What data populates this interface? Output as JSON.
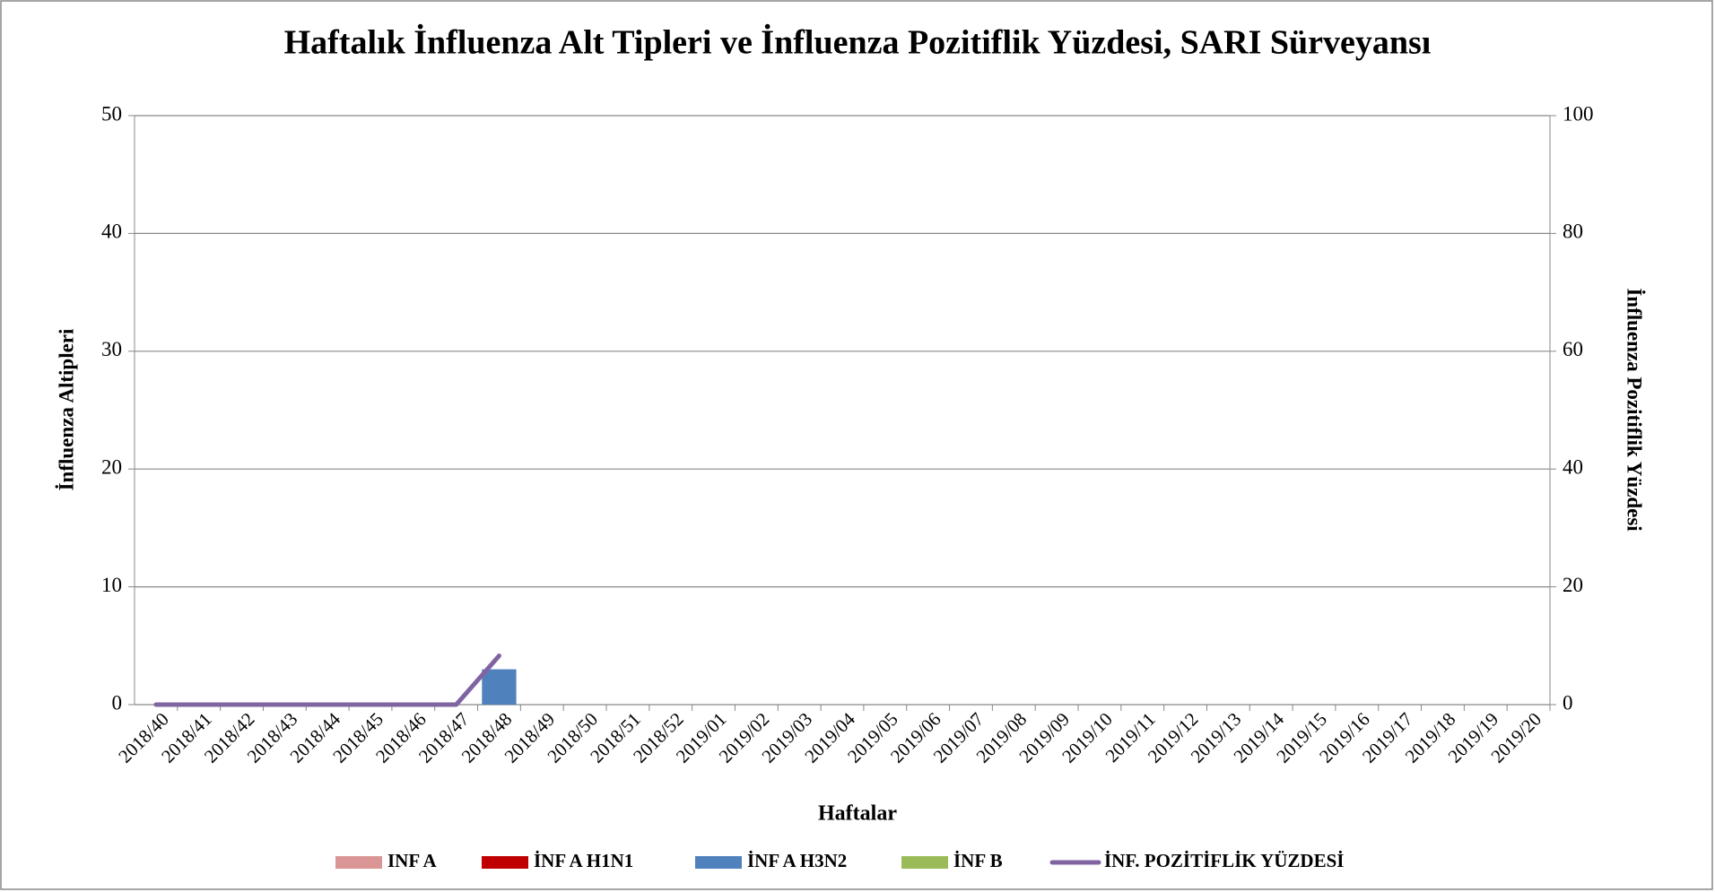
{
  "chart_data": {
    "type": "bar_line",
    "title": "Haftalık İnfluenza Alt Tipleri ve İnfluenza Pozitiflik Yüzdesi, SARI Sürveyansı",
    "xlabel": "Haftalar",
    "ylabel": "İnfluenza Altipleri",
    "y2label": "İnfluenza Pozitiflik Yüzdesi",
    "categories": [
      "2018/40",
      "2018/41",
      "2018/42",
      "2018/43",
      "2018/44",
      "2018/45",
      "2018/46",
      "2018/47",
      "2018/48",
      "2018/49",
      "2018/50",
      "2018/51",
      "2018/52",
      "2019/01",
      "2019/02",
      "2019/03",
      "2019/04",
      "2019/05",
      "2019/06",
      "2019/07",
      "2019/08",
      "2019/09",
      "2019/10",
      "2019/11",
      "2019/12",
      "2019/13",
      "2019/14",
      "2019/15",
      "2019/16",
      "2019/17",
      "2019/18",
      "2019/19",
      "2019/20"
    ],
    "series": [
      {
        "name": "INF A",
        "color": "#d99694",
        "type": "bar",
        "values": [
          0,
          0,
          0,
          0,
          0,
          0,
          0,
          0,
          0,
          null,
          null,
          null,
          null,
          null,
          null,
          null,
          null,
          null,
          null,
          null,
          null,
          null,
          null,
          null,
          null,
          null,
          null,
          null,
          null,
          null,
          null,
          null,
          null
        ]
      },
      {
        "name": "İNF A H1N1",
        "color": "#c00000",
        "type": "bar",
        "values": [
          0,
          0,
          0,
          0,
          0,
          0,
          0,
          0,
          0,
          null,
          null,
          null,
          null,
          null,
          null,
          null,
          null,
          null,
          null,
          null,
          null,
          null,
          null,
          null,
          null,
          null,
          null,
          null,
          null,
          null,
          null,
          null,
          null
        ]
      },
      {
        "name": "İNF A H3N2",
        "color": "#4f81bd",
        "type": "bar",
        "values": [
          0,
          0,
          0,
          0,
          0,
          0,
          0,
          0,
          3,
          null,
          null,
          null,
          null,
          null,
          null,
          null,
          null,
          null,
          null,
          null,
          null,
          null,
          null,
          null,
          null,
          null,
          null,
          null,
          null,
          null,
          null,
          null,
          null
        ]
      },
      {
        "name": "İNF B",
        "color": "#9bbb59",
        "type": "bar",
        "values": [
          0,
          0,
          0,
          0,
          0,
          0,
          0,
          0,
          0,
          null,
          null,
          null,
          null,
          null,
          null,
          null,
          null,
          null,
          null,
          null,
          null,
          null,
          null,
          null,
          null,
          null,
          null,
          null,
          null,
          null,
          null,
          null,
          null
        ]
      },
      {
        "name": "İNF. POZİTİFLİK YÜZDESİ",
        "color": "#8064a2",
        "type": "line",
        "axis": "y2",
        "values": [
          0,
          0,
          0,
          0,
          0,
          0,
          0,
          0,
          8.3,
          null,
          null,
          null,
          null,
          null,
          null,
          null,
          null,
          null,
          null,
          null,
          null,
          null,
          null,
          null,
          null,
          null,
          null,
          null,
          null,
          null,
          null,
          null,
          null
        ]
      }
    ],
    "ylim": [
      0,
      50
    ],
    "yticks": [
      0,
      10,
      20,
      30,
      40,
      50
    ],
    "y2lim": [
      0,
      100
    ],
    "y2ticks": [
      0,
      20,
      40,
      60,
      80,
      100
    ],
    "grid": true,
    "legend": "bottom"
  }
}
